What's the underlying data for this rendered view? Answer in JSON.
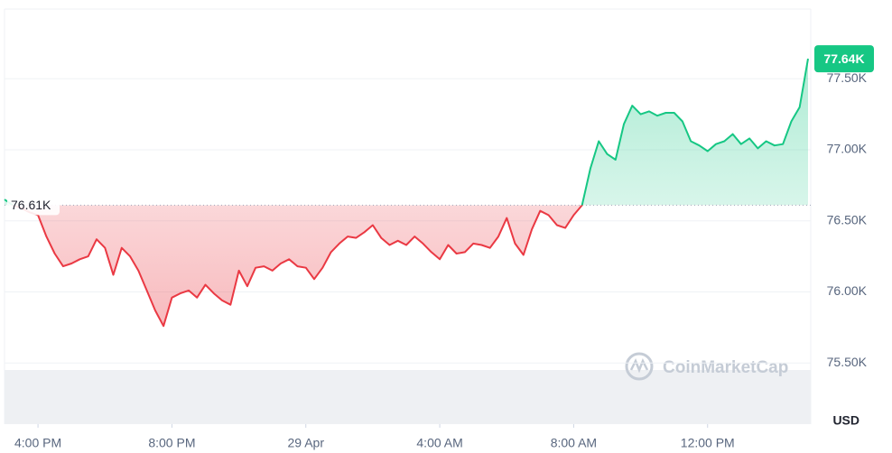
{
  "chart_data": {
    "type": "line",
    "x": [
      15,
      15.25,
      15.5,
      15.75,
      16,
      16.25,
      16.5,
      16.75,
      17,
      17.25,
      17.5,
      17.75,
      18,
      18.25,
      18.5,
      18.75,
      19,
      19.25,
      19.5,
      19.75,
      20,
      20.25,
      20.5,
      20.75,
      21,
      21.25,
      21.5,
      21.75,
      22,
      22.25,
      22.5,
      22.75,
      23,
      23.25,
      23.5,
      23.75,
      24,
      24.25,
      24.5,
      24.75,
      25,
      25.25,
      25.5,
      25.75,
      26,
      26.25,
      26.5,
      26.75,
      27,
      27.25,
      27.5,
      27.75,
      28,
      28.25,
      28.5,
      28.75,
      29,
      29.25,
      29.5,
      29.75,
      30,
      30.25,
      30.5,
      30.75,
      31,
      31.25,
      31.5,
      31.75,
      32,
      32.25,
      32.5,
      32.75,
      33,
      33.25,
      33.5,
      33.75,
      34,
      34.25,
      34.5,
      34.75,
      35,
      35.25,
      35.5,
      35.75,
      36,
      36.25,
      36.5,
      36.75,
      37,
      37.25,
      37.5,
      37.75,
      38,
      38.25,
      38.5,
      38.75,
      39
    ],
    "values": [
      76.65,
      76.61,
      76.59,
      76.56,
      76.54,
      76.39,
      76.27,
      76.18,
      76.2,
      76.23,
      76.25,
      76.37,
      76.31,
      76.12,
      76.31,
      76.25,
      76.15,
      76.01,
      75.87,
      75.76,
      75.96,
      75.99,
      76.01,
      75.96,
      76.05,
      75.99,
      75.94,
      75.91,
      76.15,
      76.04,
      76.17,
      76.18,
      76.15,
      76.2,
      76.23,
      76.18,
      76.17,
      76.09,
      76.17,
      76.28,
      76.34,
      76.39,
      76.38,
      76.42,
      76.47,
      76.38,
      76.33,
      76.36,
      76.33,
      76.39,
      76.34,
      76.28,
      76.23,
      76.33,
      76.27,
      76.28,
      76.34,
      76.33,
      76.31,
      76.39,
      76.52,
      76.34,
      76.26,
      76.44,
      76.57,
      76.54,
      76.47,
      76.45,
      76.54,
      76.61,
      76.87,
      77.06,
      76.97,
      76.93,
      77.18,
      77.31,
      77.25,
      77.27,
      77.24,
      77.26,
      77.26,
      77.2,
      77.06,
      77.03,
      76.99,
      77.04,
      77.06,
      77.11,
      77.04,
      77.08,
      77.01,
      77.06,
      77.03,
      77.04,
      77.2,
      77.3,
      77.64
    ],
    "reference": {
      "value": 76.61,
      "label": "76.61K"
    },
    "last_price": {
      "value": 77.64,
      "label": "77.64K"
    },
    "up_color": "#16c784",
    "down_color": "#ea3943",
    "xlim": [
      15,
      39
    ],
    "xticks": [
      {
        "value": 16,
        "label": "4:00 PM"
      },
      {
        "value": 20,
        "label": "8:00 PM"
      },
      {
        "value": 24,
        "label": "29 Apr"
      },
      {
        "value": 28,
        "label": "4:00 AM"
      },
      {
        "value": 32,
        "label": "8:00 AM"
      },
      {
        "value": 36,
        "label": "12:00 PM"
      }
    ],
    "ylim": [
      75.07,
      77.99
    ],
    "yticks": [
      {
        "value": 75.5,
        "label": "75.50K"
      },
      {
        "value": 76,
        "label": "76.00K"
      },
      {
        "value": 76.5,
        "label": "76.50K"
      },
      {
        "value": 77,
        "label": "77.00K"
      },
      {
        "value": 77.5,
        "label": "77.50K"
      }
    ],
    "y_unit_label": "USD",
    "watermark": "CoinMarketCap",
    "grid": true
  }
}
